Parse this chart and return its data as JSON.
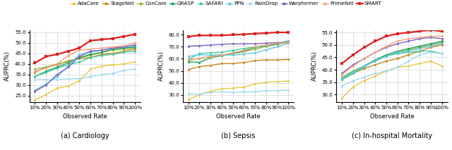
{
  "x_labels": [
    "10%",
    "20%",
    "30%",
    "40%",
    "50%",
    "60%",
    "70%",
    "80%",
    "90%",
    "100%"
  ],
  "x_vals": [
    0,
    1,
    2,
    3,
    4,
    5,
    6,
    7,
    8,
    9
  ],
  "cardiology": {
    "title": "(a) Cardiology",
    "ylabel": "AUPRC(%)",
    "xlabel": "Observed Rate",
    "ylim": [
      22,
      56
    ],
    "yticks": [
      25.0,
      30.0,
      35.0,
      40.0,
      45.0,
      50.0,
      55.0
    ],
    "series": {
      "AdaCare": [
        23.0,
        25.5,
        28.5,
        29.5,
        32.0,
        37.5,
        39.0,
        39.5,
        40.0,
        41.0
      ],
      "StageNet": [
        36.0,
        38.5,
        39.5,
        41.5,
        42.5,
        43.0,
        44.5,
        45.0,
        46.0,
        47.0
      ],
      "ConCare": [
        37.5,
        38.5,
        40.0,
        41.0,
        43.0,
        44.0,
        45.5,
        46.5,
        47.0,
        47.5
      ],
      "GRASP": [
        34.0,
        36.5,
        38.5,
        40.5,
        43.0,
        44.5,
        45.5,
        47.0,
        47.5,
        48.0
      ],
      "SAFARI": [
        34.0,
        36.0,
        38.0,
        39.5,
        41.0,
        43.0,
        44.0,
        44.5,
        45.5,
        46.0
      ],
      "PPN": [
        27.5,
        30.5,
        34.0,
        39.0,
        44.5,
        45.5,
        46.5,
        47.5,
        48.0,
        48.5
      ],
      "RainDrop": [
        32.5,
        32.5,
        32.5,
        33.0,
        33.0,
        34.0,
        35.0,
        35.5,
        37.0,
        37.5
      ],
      "Warpformer": [
        27.0,
        30.0,
        35.0,
        38.5,
        43.5,
        46.0,
        46.5,
        47.5,
        48.0,
        49.0
      ],
      "PrimeNet": [
        36.5,
        38.0,
        40.0,
        44.0,
        46.5,
        47.0,
        47.5,
        48.0,
        48.5,
        50.0
      ],
      "SMART": [
        40.5,
        43.5,
        44.5,
        46.0,
        47.5,
        51.0,
        51.5,
        52.0,
        53.0,
        54.0
      ]
    }
  },
  "sepsis": {
    "title": "(b) Sepsis",
    "ylabel": "AUPRC(%)",
    "xlabel": "Observed Rate",
    "ylim": [
      24,
      84
    ],
    "yticks": [
      30.0,
      40.0,
      50.0,
      60.0,
      70.0,
      80.0
    ],
    "series": {
      "AdaCare": [
        26.0,
        30.0,
        33.0,
        35.0,
        35.5,
        36.5,
        39.0,
        40.5,
        41.0,
        41.5
      ],
      "StageNet": [
        51.0,
        53.5,
        54.5,
        56.0,
        56.0,
        57.0,
        58.5,
        59.0,
        59.0,
        59.5
      ],
      "ConCare": [
        58.5,
        60.5,
        62.0,
        63.0,
        64.5,
        66.0,
        68.0,
        70.5,
        72.0,
        74.0
      ],
      "GRASP": [
        57.5,
        57.0,
        61.0,
        62.5,
        64.5,
        66.5,
        69.5,
        71.0,
        72.5,
        74.5
      ],
      "SAFARI": [
        59.5,
        64.5,
        65.0,
        65.5,
        67.0,
        68.5,
        70.0,
        71.0,
        73.0,
        75.0
      ],
      "PPN": [
        62.0,
        63.5,
        63.0,
        63.5,
        63.0,
        64.0,
        65.0,
        67.5,
        70.0,
        73.0
      ],
      "RainDrop": [
        31.0,
        30.5,
        32.0,
        32.5,
        32.0,
        32.5,
        32.5,
        33.5,
        33.5,
        34.0
      ],
      "Warpformer": [
        70.5,
        71.0,
        71.5,
        72.0,
        72.5,
        72.5,
        72.5,
        73.0,
        73.5,
        73.5
      ],
      "PrimeNet": [
        59.0,
        60.5,
        61.5,
        63.0,
        65.0,
        67.0,
        70.0,
        71.5,
        73.0,
        74.0
      ],
      "SMART": [
        78.5,
        79.5,
        79.5,
        79.5,
        80.0,
        80.5,
        81.0,
        81.5,
        82.0,
        82.0
      ]
    }
  },
  "mortality": {
    "title": "(c) In-hospital Mortality",
    "ylabel": "AUPRC(%)",
    "xlabel": "Observed Rate",
    "ylim": [
      27,
      56
    ],
    "yticks": [
      30.0,
      35.0,
      40.0,
      45.0,
      50.0,
      55.0
    ],
    "series": {
      "AdaCare": [
        28.5,
        33.0,
        35.5,
        37.5,
        39.5,
        41.0,
        41.5,
        42.5,
        43.5,
        41.5
      ],
      "StageNet": [
        36.0,
        38.5,
        40.5,
        42.0,
        43.5,
        44.5,
        46.0,
        47.5,
        49.0,
        50.0
      ],
      "ConCare": [
        37.0,
        39.5,
        41.5,
        43.5,
        45.5,
        47.0,
        48.0,
        49.0,
        50.0,
        51.0
      ],
      "GRASP": [
        36.5,
        39.0,
        41.5,
        44.0,
        46.0,
        47.5,
        48.5,
        49.5,
        50.5,
        51.5
      ],
      "SAFARI": [
        36.0,
        38.5,
        41.0,
        44.0,
        45.5,
        46.5,
        47.0,
        47.5,
        47.5,
        46.5
      ],
      "PPN": [
        36.5,
        39.0,
        41.5,
        43.5,
        45.5,
        47.0,
        47.5,
        48.5,
        49.5,
        50.5
      ],
      "RainDrop": [
        33.5,
        35.5,
        37.0,
        38.5,
        39.5,
        41.0,
        43.5,
        46.0,
        47.0,
        46.5
      ],
      "Warpformer": [
        38.5,
        42.0,
        44.5,
        47.0,
        49.0,
        50.5,
        51.5,
        52.5,
        53.0,
        52.5
      ],
      "PrimeNet": [
        38.0,
        41.5,
        44.5,
        47.0,
        49.5,
        51.5,
        52.5,
        53.0,
        53.5,
        53.5
      ],
      "SMART": [
        42.5,
        46.0,
        49.0,
        51.5,
        53.5,
        54.5,
        55.0,
        55.5,
        56.0,
        55.5
      ]
    }
  },
  "colors": {
    "AdaCare": "#e8c840",
    "StageNet": "#c88820",
    "ConCare": "#90b840",
    "GRASP": "#20a060",
    "SAFARI": "#40c8a0",
    "PPN": "#60c8e0",
    "RainDrop": "#a0d8f0",
    "Warpformer": "#8060c0",
    "PrimeNet": "#f0a080",
    "SMART": "#e02020"
  },
  "markers": {
    "AdaCare": "o",
    "StageNet": "o",
    "ConCare": "o",
    "GRASP": "o",
    "SAFARI": "o",
    "PPN": "o",
    "RainDrop": "o",
    "Warpformer": "o",
    "PrimeNet": "o",
    "SMART": "s"
  },
  "legend_order": [
    "AdaCare",
    "StageNet",
    "ConCare",
    "GRASP",
    "SAFARI",
    "PPN",
    "RainDrop",
    "Warpformer",
    "PrimeNet",
    "SMART"
  ]
}
